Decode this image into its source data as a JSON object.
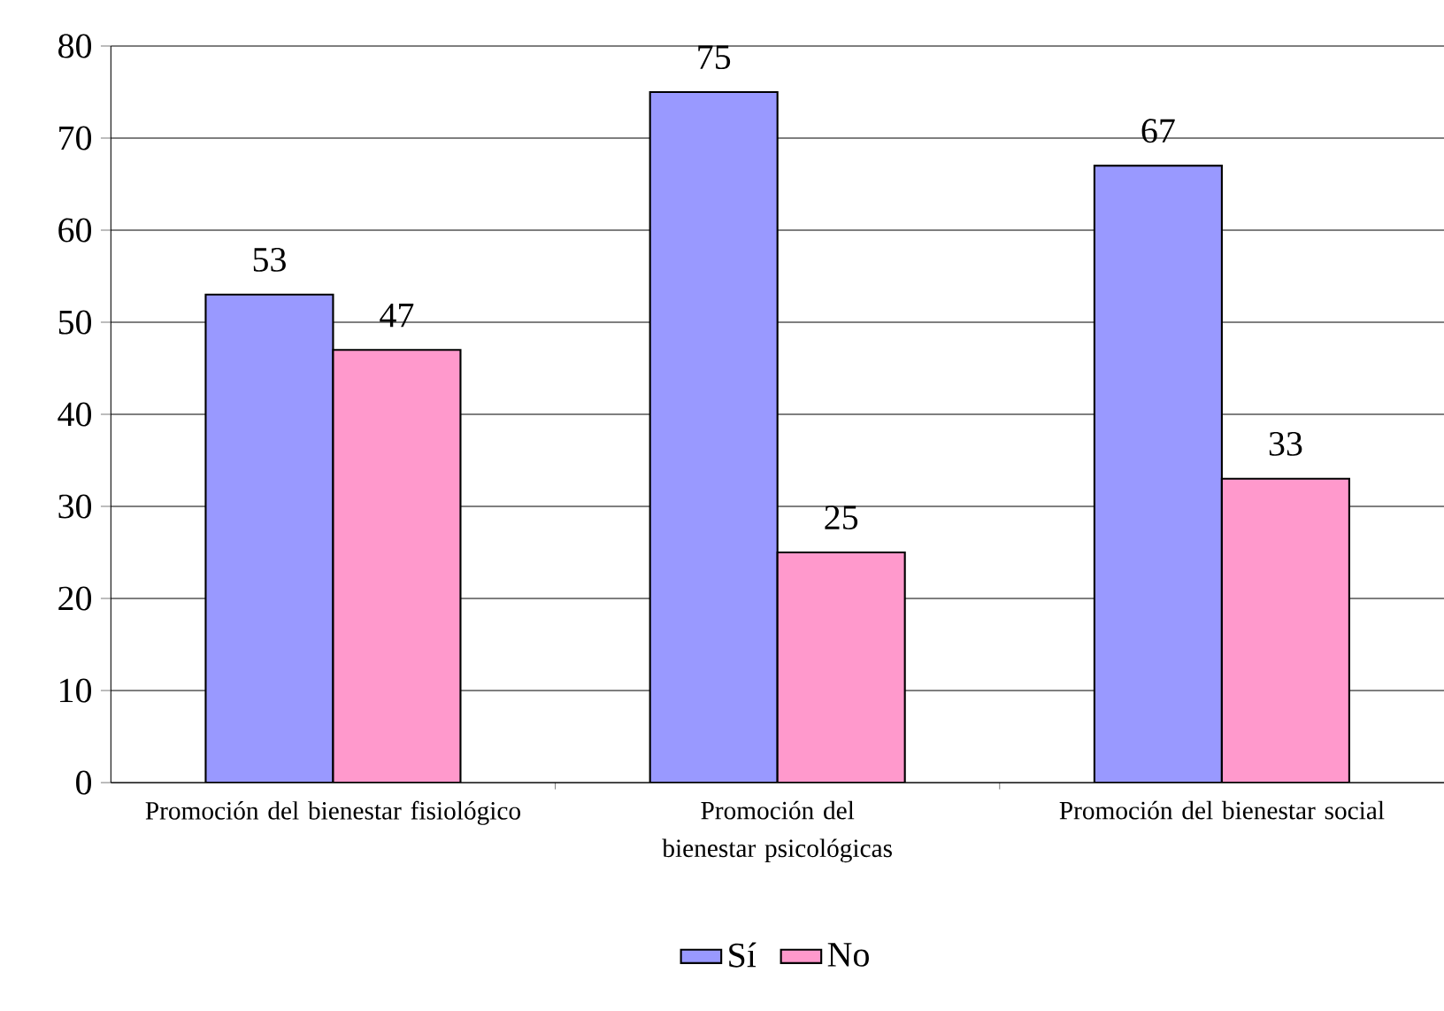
{
  "chart_data": {
    "type": "bar",
    "categories": [
      "Promoción del bienestar fisiológico",
      "Promoción del bienestar psicológicas",
      "Promoción del bienestar social"
    ],
    "series": [
      {
        "name": "Sí",
        "color": "#9999ff",
        "values": [
          53,
          75,
          67
        ]
      },
      {
        "name": "No",
        "color": "#ff99cc",
        "values": [
          47,
          25,
          33
        ]
      }
    ],
    "ylim": [
      0,
      80
    ],
    "yticks": [
      0,
      10,
      20,
      30,
      40,
      50,
      60,
      70,
      80
    ],
    "grid": "y",
    "legend": "bottom",
    "data_labels": true
  }
}
